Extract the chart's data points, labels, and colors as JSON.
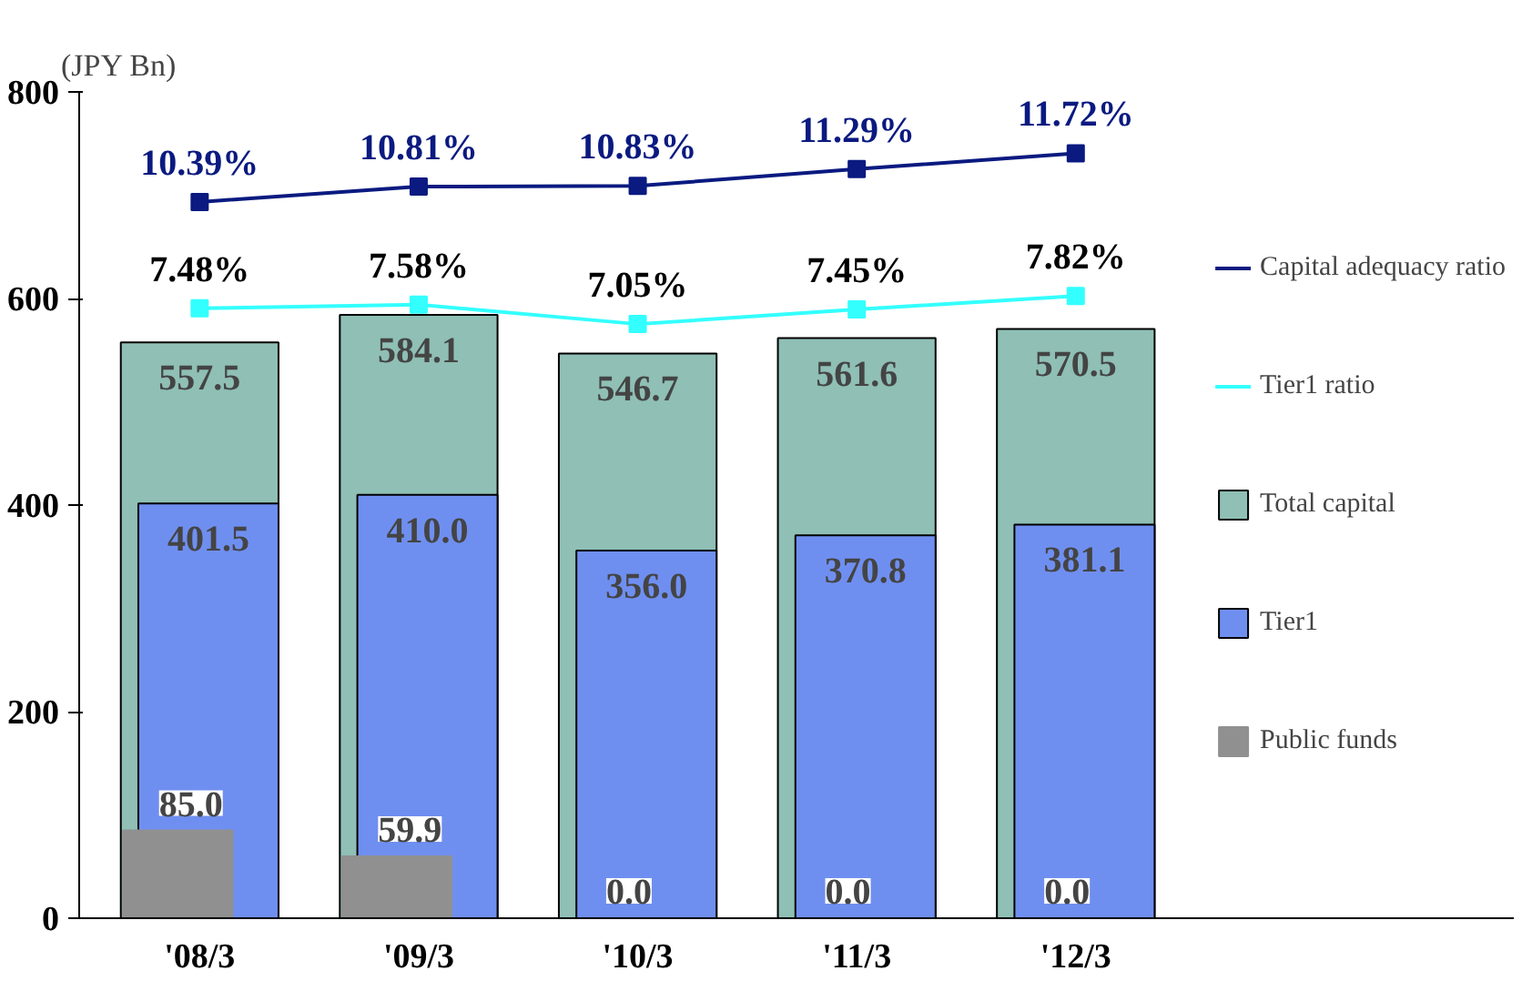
{
  "chart_data": {
    "type": "bar",
    "ylabel": "(JPY Bn)",
    "categories": [
      "'08/3",
      "'09/3",
      "'10/3",
      "'11/3",
      "'12/3"
    ],
    "ylim": [
      0,
      800
    ],
    "yticks": [
      0,
      200,
      400,
      600,
      800
    ],
    "y2lim": [
      -9.2,
      13.4
    ],
    "grid": false,
    "legend": "right",
    "series": [
      {
        "name": "Public funds",
        "color": "#909090",
        "values": [
          85.0,
          59.9,
          0.0,
          0.0,
          0.0
        ],
        "value_labels": [
          "85.0",
          "59.9",
          "0.0",
          "0.0",
          "0.0"
        ]
      },
      {
        "name": "Total capital",
        "color": "#8fbfb5",
        "values": [
          557.5,
          584.1,
          546.7,
          561.6,
          570.5
        ],
        "value_labels": [
          "557.5",
          "584.1",
          "546.7",
          "561.6",
          "570.5"
        ]
      },
      {
        "name": "Tier1",
        "color": "#6f8ff0",
        "values": [
          401.5,
          410.0,
          356.0,
          370.8,
          381.1
        ],
        "value_labels": [
          "401.5",
          "410.0",
          "356.0",
          "370.8",
          "381.1"
        ]
      },
      {
        "name": "Capital adequacy ratio",
        "type": "line",
        "axis": "y2",
        "color": "#0a1a80",
        "marker": "square",
        "values": [
          10.39,
          10.81,
          10.83,
          11.29,
          11.72
        ],
        "value_labels": [
          "10.39%",
          "10.81%",
          "10.83%",
          "11.29%",
          "11.72%"
        ]
      },
      {
        "name": "Tier1 ratio",
        "type": "line",
        "axis": "y2",
        "color": "#33ffff",
        "marker": "square",
        "values": [
          7.48,
          7.58,
          7.05,
          7.45,
          7.82
        ],
        "value_labels": [
          "7.48%",
          "7.58%",
          "7.05%",
          "7.45%",
          "7.82%"
        ]
      }
    ]
  }
}
